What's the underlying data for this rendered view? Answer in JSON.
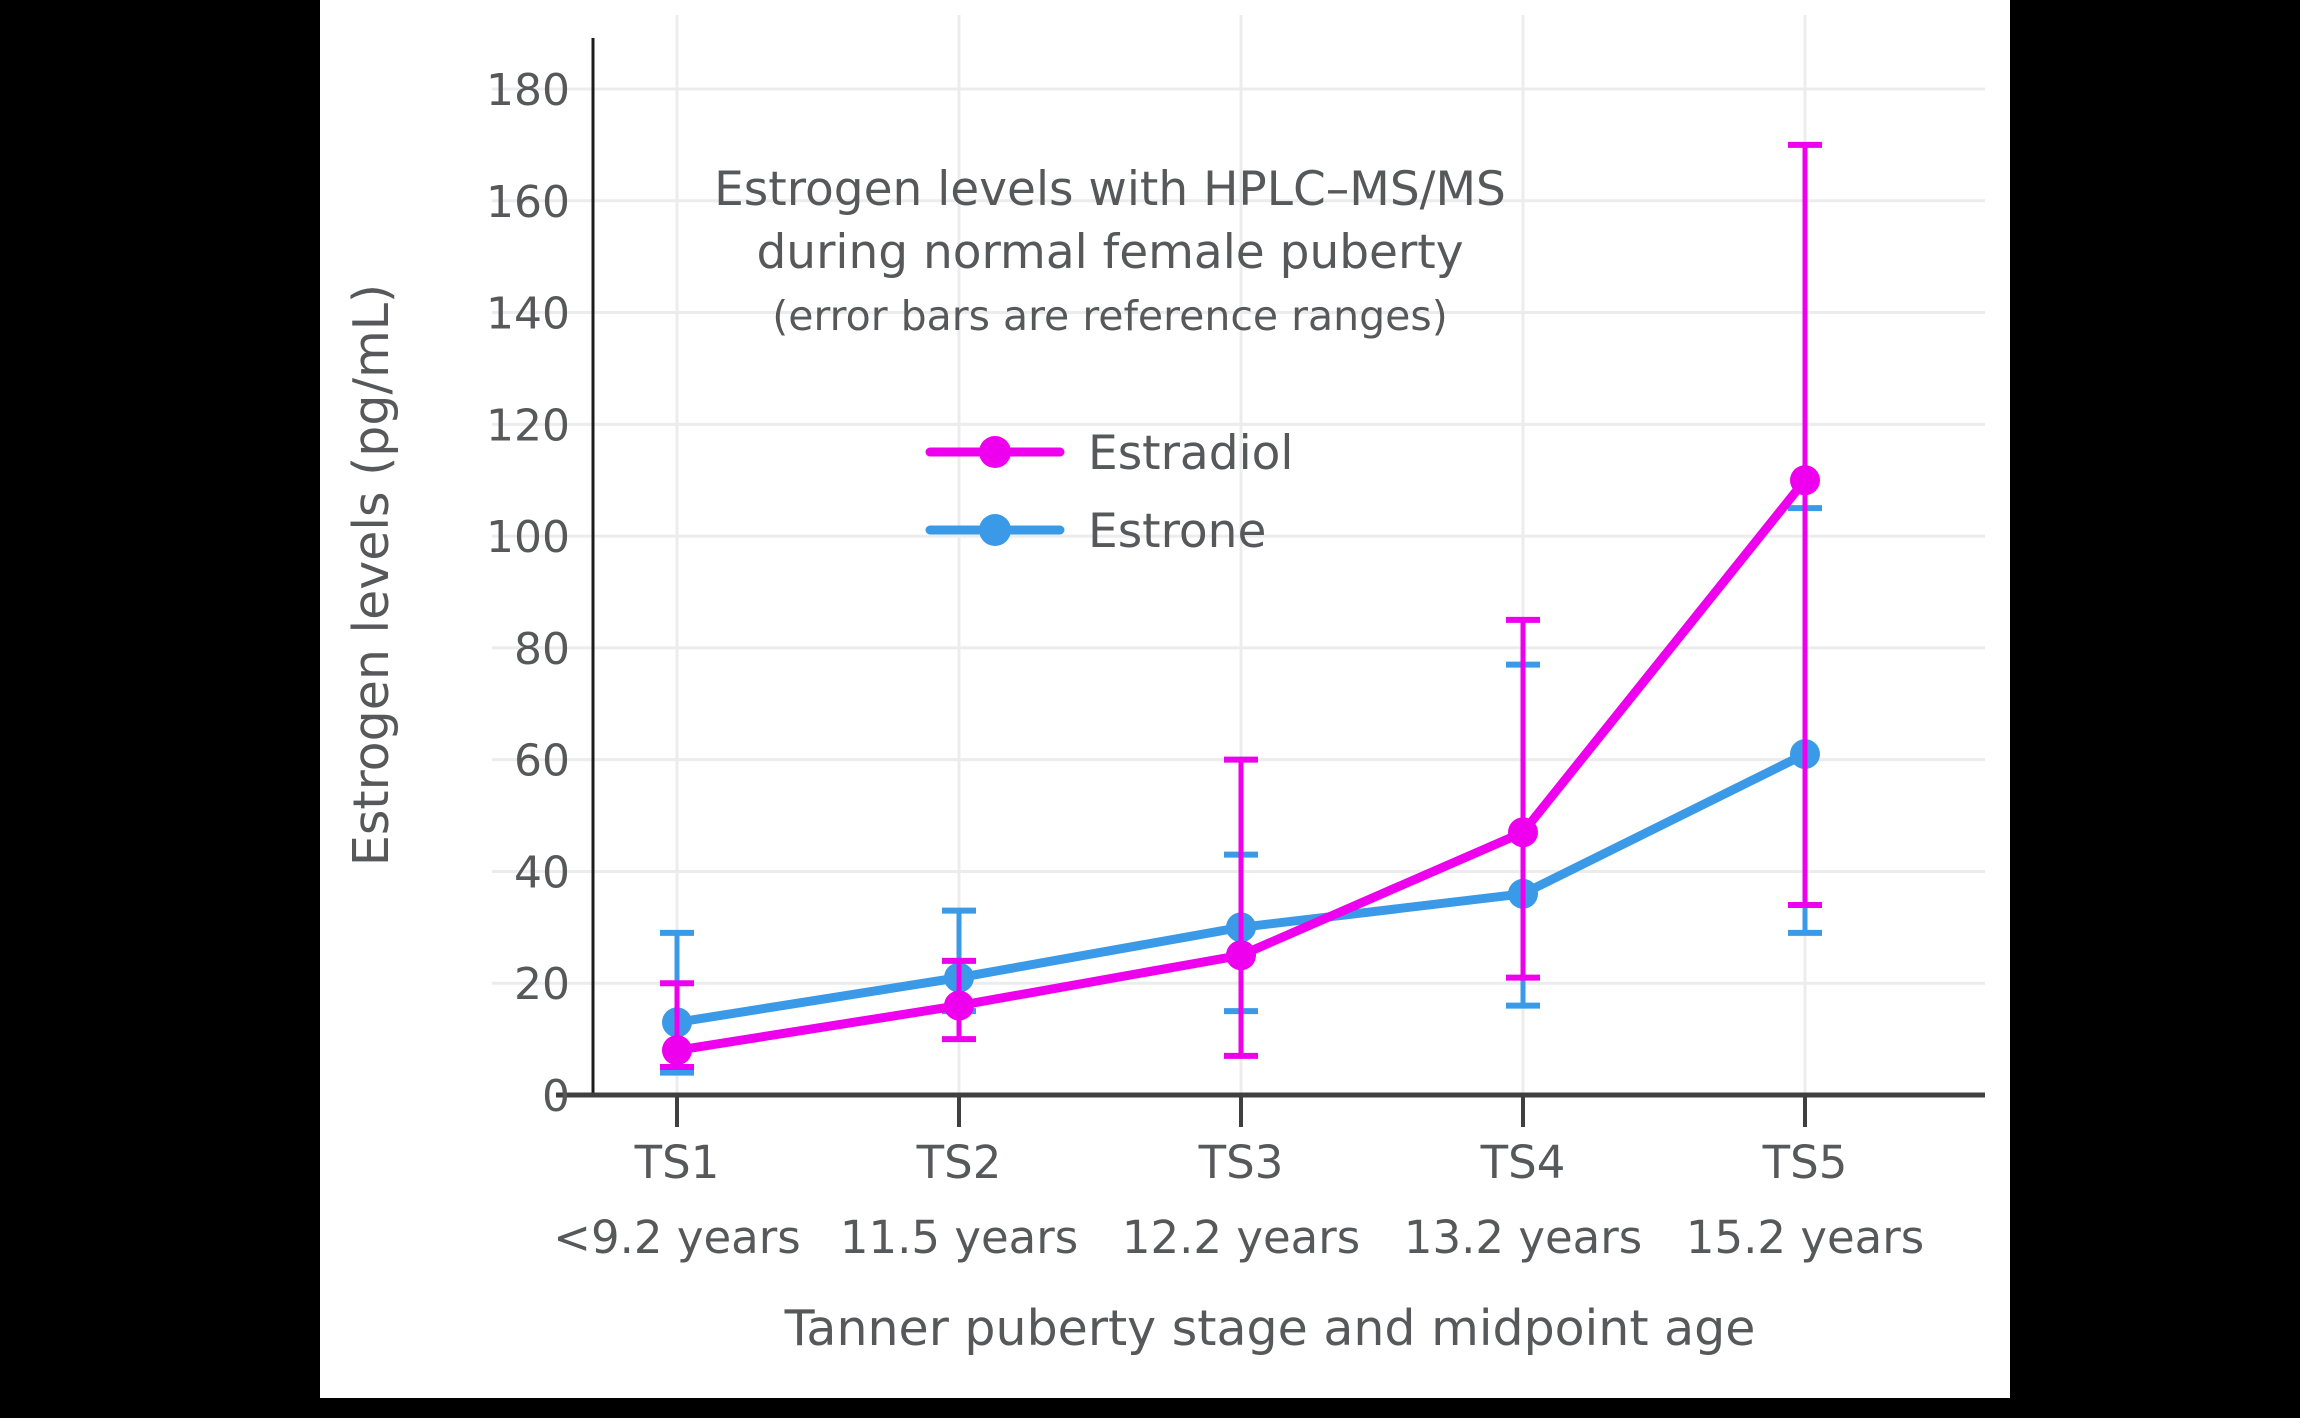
{
  "chart_data": {
    "type": "line",
    "title_line1": "Estrogen levels with HPLC–MS/MS",
    "title_line2": "during normal female puberty",
    "subtitle": "(error bars are reference ranges)",
    "xlabel": "Tanner puberty stage and midpoint age",
    "ylabel": "Estrogen levels (pg/mL)",
    "categories": [
      "TS1",
      "TS2",
      "TS3",
      "TS4",
      "TS5"
    ],
    "category_sublabels": [
      "<9.2 years",
      "11.5 years",
      "12.2 years",
      "13.2 years",
      "15.2 years"
    ],
    "ylim": [
      0,
      180
    ],
    "ytick_step": 20,
    "grid": true,
    "legend_position": "upper-center-inside",
    "error_bars_are": "reference ranges",
    "series": [
      {
        "name": "Estradiol",
        "color": "#EE00EE",
        "values": [
          8,
          16,
          25,
          47,
          110
        ],
        "error_low": [
          5,
          10,
          7,
          21,
          34
        ],
        "error_high": [
          20,
          24,
          60,
          85,
          170
        ]
      },
      {
        "name": "Estrone",
        "color": "#3B9AE8",
        "values": [
          13,
          21,
          30,
          36,
          61
        ],
        "error_low": [
          4,
          15,
          15,
          16,
          29
        ],
        "error_high": [
          29,
          33,
          43,
          77,
          105
        ]
      }
    ]
  },
  "colors": {
    "text": "#57585a",
    "grid": "#ececec",
    "x_axis": "#3f3f3f",
    "y_axis": "#1c1c1c",
    "plot_background": "#ffffff",
    "frame": "#000000"
  }
}
